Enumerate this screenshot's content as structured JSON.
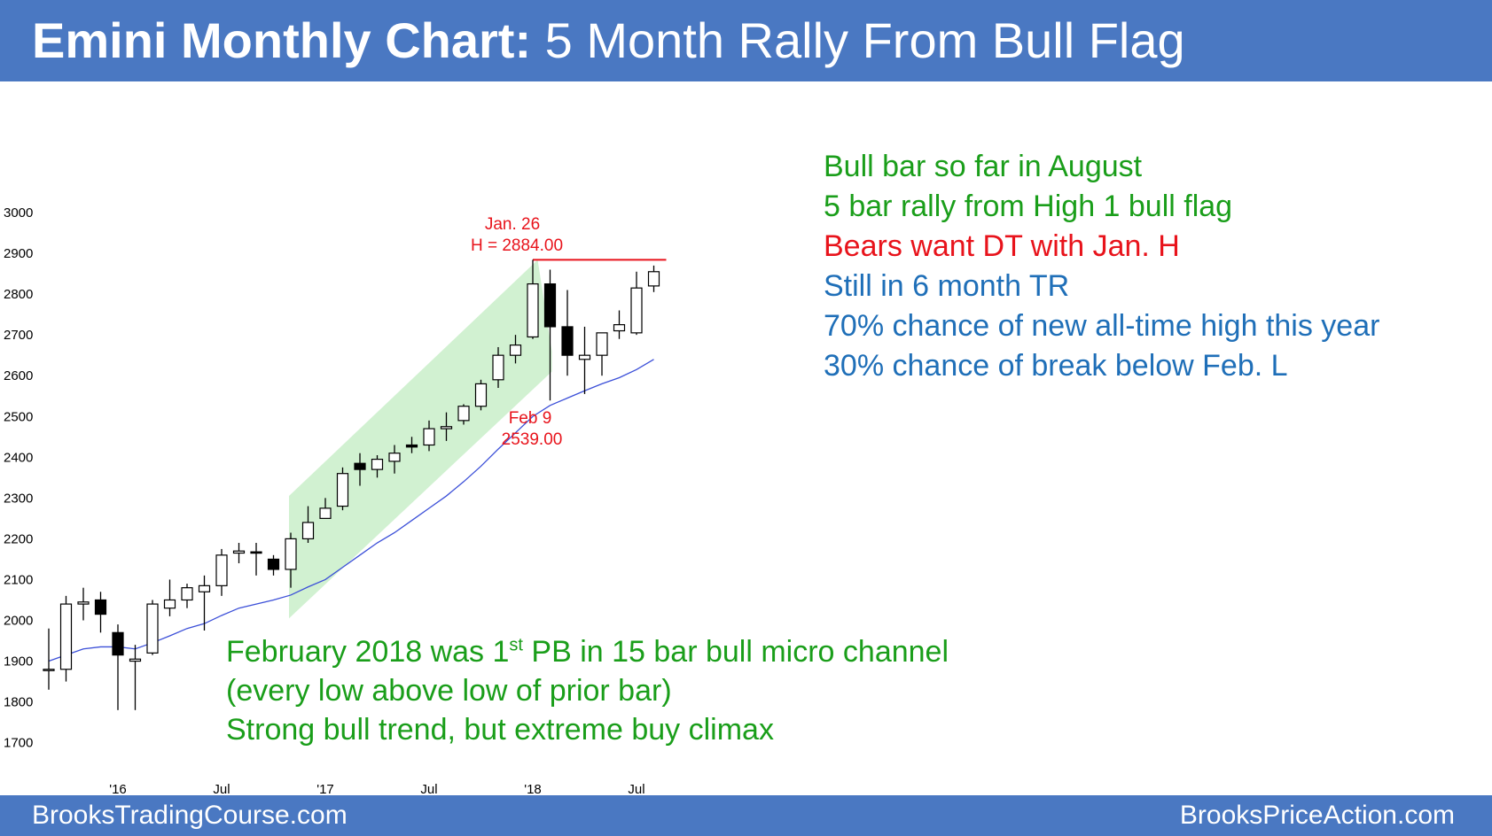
{
  "title": {
    "bold": "Emini Monthly Chart:",
    "rest": " 5 Month Rally From Bull Flag"
  },
  "footer": {
    "left": "BrooksTradingCourse.com",
    "right": "BrooksPriceAction.com"
  },
  "notes": [
    {
      "text": "Bull bar so far in August",
      "color": "#1a9e1a"
    },
    {
      "text": "5 bar rally from High 1 bull flag",
      "color": "#1a9e1a"
    },
    {
      "text": "Bears want DT with Jan. H",
      "color": "#e8131b"
    },
    {
      "text": "Still in 6 month TR",
      "color": "#1f6fb8"
    },
    {
      "text": "70% chance of new all-time high this year",
      "color": "#1f6fb8"
    },
    {
      "text": "30% chance of break below Feb. L",
      "color": "#1f6fb8"
    }
  ],
  "bottom_notes": {
    "line1_a": "February 2018 was 1",
    "line1_sup": "st",
    "line1_b": " PB in 15 bar bull micro channel",
    "line2": "(every low above low of prior bar)",
    "line3": "Strong bull trend, but extreme buy climax"
  },
  "chart_data": {
    "type": "candlestick",
    "ylim": [
      1650,
      3050
    ],
    "yticks": [
      1700,
      1800,
      1900,
      2000,
      2100,
      2200,
      2300,
      2400,
      2500,
      2600,
      2700,
      2800,
      2900,
      3000
    ],
    "xticks": [
      {
        "label": "'16",
        "index": 4
      },
      {
        "label": "Jul",
        "index": 10
      },
      {
        "label": "'17",
        "index": 16
      },
      {
        "label": "Jul",
        "index": 22
      },
      {
        "label": "'18",
        "index": 28
      },
      {
        "label": "Jul",
        "index": 34
      }
    ],
    "candles": [
      {
        "o": 1880,
        "h": 1980,
        "l": 1830,
        "c": 1880
      },
      {
        "o": 1880,
        "h": 2060,
        "l": 1850,
        "c": 2040
      },
      {
        "o": 2040,
        "h": 2080,
        "l": 2000,
        "c": 2045
      },
      {
        "o": 2050,
        "h": 2070,
        "l": 1970,
        "c": 2015
      },
      {
        "o": 1970,
        "h": 1990,
        "l": 1780,
        "c": 1915
      },
      {
        "o": 1900,
        "h": 1940,
        "l": 1780,
        "c": 1905
      },
      {
        "o": 1920,
        "h": 2050,
        "l": 1915,
        "c": 2040
      },
      {
        "o": 2030,
        "h": 2100,
        "l": 2010,
        "c": 2050
      },
      {
        "o": 2050,
        "h": 2090,
        "l": 2030,
        "c": 2080
      },
      {
        "o": 2070,
        "h": 2110,
        "l": 1975,
        "c": 2085
      },
      {
        "o": 2085,
        "h": 2175,
        "l": 2060,
        "c": 2160
      },
      {
        "o": 2165,
        "h": 2190,
        "l": 2140,
        "c": 2170
      },
      {
        "o": 2168,
        "h": 2190,
        "l": 2110,
        "c": 2165
      },
      {
        "o": 2150,
        "h": 2160,
        "l": 2110,
        "c": 2125
      },
      {
        "o": 2125,
        "h": 2215,
        "l": 2080,
        "c": 2200
      },
      {
        "o": 2200,
        "h": 2280,
        "l": 2190,
        "c": 2240
      },
      {
        "o": 2250,
        "h": 2300,
        "l": 2250,
        "c": 2275
      },
      {
        "o": 2280,
        "h": 2375,
        "l": 2270,
        "c": 2360
      },
      {
        "o": 2385,
        "h": 2410,
        "l": 2330,
        "c": 2370
      },
      {
        "o": 2370,
        "h": 2405,
        "l": 2350,
        "c": 2395
      },
      {
        "o": 2390,
        "h": 2430,
        "l": 2360,
        "c": 2410
      },
      {
        "o": 2430,
        "h": 2450,
        "l": 2410,
        "c": 2425
      },
      {
        "o": 2430,
        "h": 2490,
        "l": 2415,
        "c": 2470
      },
      {
        "o": 2470,
        "h": 2510,
        "l": 2440,
        "c": 2475
      },
      {
        "o": 2490,
        "h": 2530,
        "l": 2480,
        "c": 2525
      },
      {
        "o": 2525,
        "h": 2590,
        "l": 2515,
        "c": 2580
      },
      {
        "o": 2590,
        "h": 2670,
        "l": 2570,
        "c": 2650
      },
      {
        "o": 2650,
        "h": 2700,
        "l": 2630,
        "c": 2675
      },
      {
        "o": 2695,
        "h": 2884,
        "l": 2690,
        "c": 2825
      },
      {
        "o": 2825,
        "h": 2860,
        "l": 2539,
        "c": 2720
      },
      {
        "o": 2720,
        "h": 2810,
        "l": 2600,
        "c": 2650
      },
      {
        "o": 2640,
        "h": 2720,
        "l": 2555,
        "c": 2650
      },
      {
        "o": 2650,
        "h": 2700,
        "l": 2600,
        "c": 2705
      },
      {
        "o": 2710,
        "h": 2760,
        "l": 2690,
        "c": 2725
      },
      {
        "o": 2705,
        "h": 2855,
        "l": 2700,
        "c": 2815
      },
      {
        "o": 2820,
        "h": 2870,
        "l": 2805,
        "c": 2855
      }
    ],
    "moving_average": [
      1900,
      1915,
      1930,
      1935,
      1935,
      1930,
      1945,
      1962,
      1980,
      1992,
      2012,
      2030,
      2040,
      2050,
      2062,
      2082,
      2100,
      2130,
      2160,
      2190,
      2215,
      2245,
      2275,
      2305,
      2340,
      2378,
      2420,
      2460,
      2500,
      2527,
      2545,
      2563,
      2580,
      2595,
      2615,
      2640
    ],
    "resistance": {
      "value": 2884,
      "from_index": 28,
      "to_index": 35
    },
    "channel": {
      "from_index": 14,
      "to_index": 29
    },
    "annotations": [
      {
        "line1": "Jan. 26",
        "line2": "H = 2884.00",
        "index": 28,
        "value": 2884,
        "color": "#e8131b"
      },
      {
        "line1": "Feb 9",
        "line2": "2539.00",
        "index": 29,
        "value": 2539,
        "color": "#e8131b"
      }
    ]
  }
}
